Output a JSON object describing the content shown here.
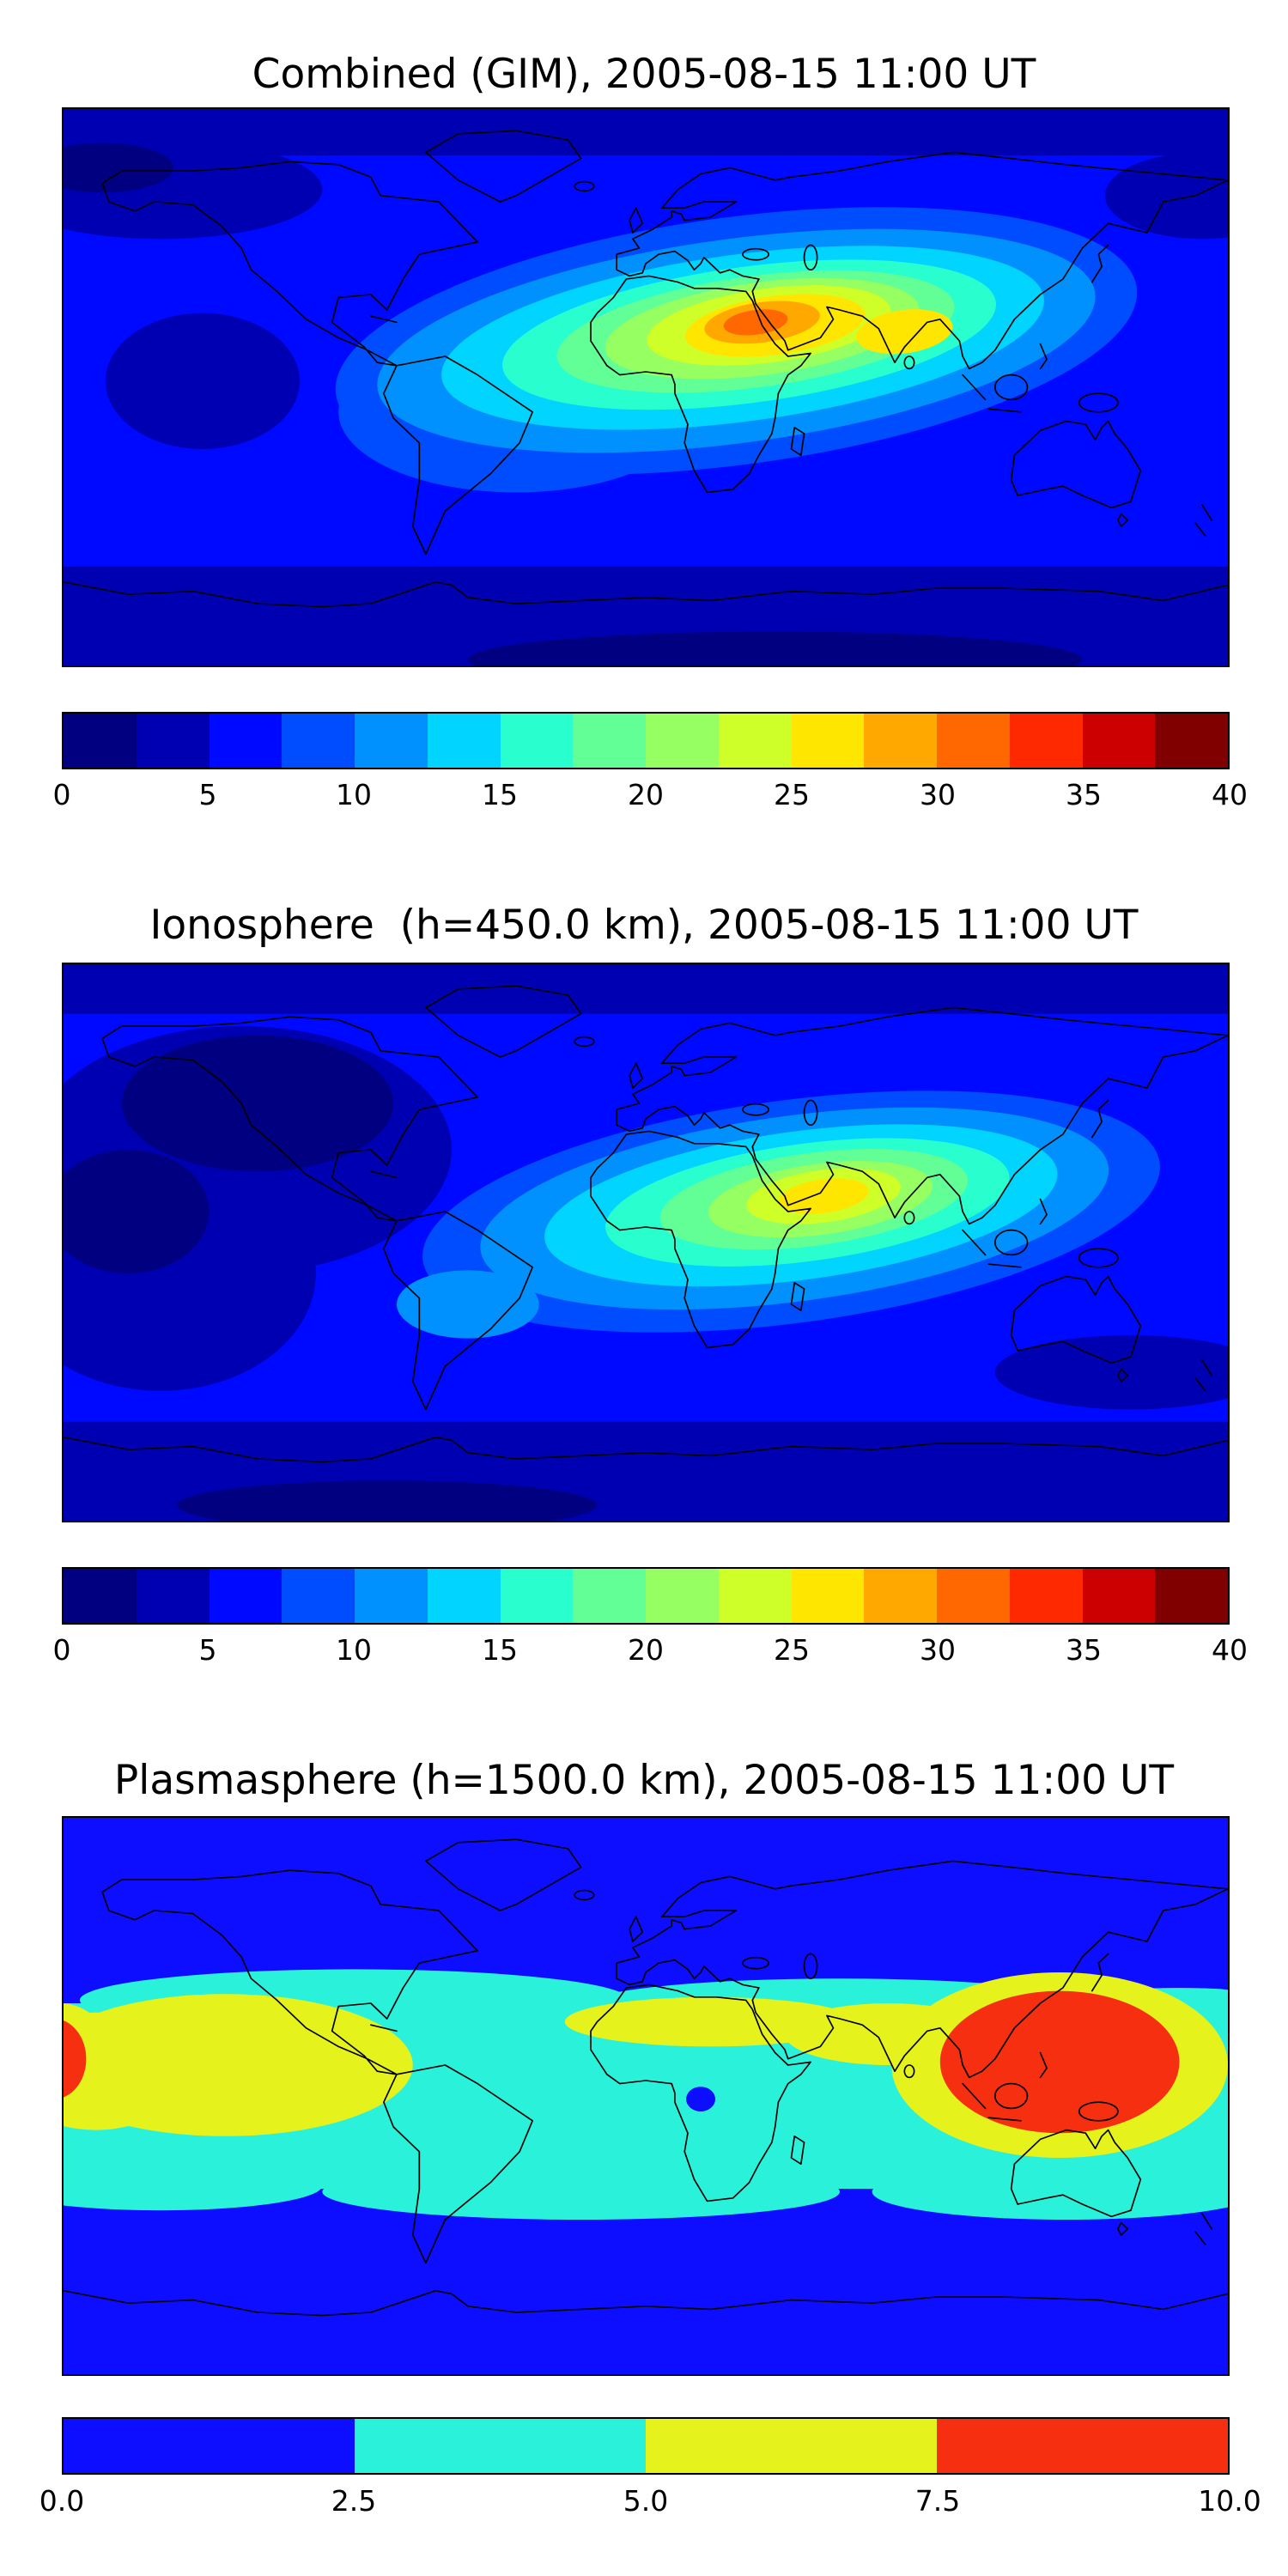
{
  "page": {
    "background": "#ffffff"
  },
  "panels": [
    {
      "id": "combined",
      "title": "Combined (GIM), 2005-08-15 11:00 UT",
      "colorbar": {
        "colors": [
          "#000080",
          "#0000b3",
          "#0009ff",
          "#004dff",
          "#0091ff",
          "#00d4ff",
          "#29ffce",
          "#61ff96",
          "#96ff61",
          "#ceff29",
          "#ffe600",
          "#ffa800",
          "#ff6800",
          "#ff2900",
          "#cc0000",
          "#800000"
        ],
        "tick_labels": [
          "0",
          "5",
          "10",
          "15",
          "20",
          "25",
          "30",
          "35",
          "40"
        ]
      },
      "map": {
        "base_color": "#0009ff",
        "coast_color": "#000000",
        "layers": [
          {
            "shape": "rect",
            "color": "#0009ff"
          },
          {
            "shape": "rect",
            "color": "#0000b3",
            "lat0": 75,
            "lat1": 90
          },
          {
            "shape": "ellipse",
            "color": "#0000b3",
            "lon": -150,
            "lat": 64,
            "rx": 50,
            "ry": 16
          },
          {
            "shape": "ellipse",
            "color": "#0000b3",
            "lon": 172,
            "lat": 62,
            "rx": 30,
            "ry": 14
          },
          {
            "shape": "ellipse",
            "color": "#0000b3",
            "lon": -137,
            "lat": 2,
            "rx": 30,
            "ry": 22
          },
          {
            "shape": "rect",
            "color": "#0000b3",
            "lat0": -90,
            "lat1": -58
          },
          {
            "shape": "ellipse",
            "color": "#000080",
            "lon": 40,
            "lat": -88,
            "rx": 95,
            "ry": 9
          },
          {
            "shape": "ellipse",
            "color": "#000080",
            "lon": -168,
            "lat": 71,
            "rx": 22,
            "ry": 8
          },
          {
            "shape": "ellipse",
            "color": "#004dff",
            "lon": -40,
            "lat": -8,
            "rx": 55,
            "ry": 26
          },
          {
            "shape": "ellipse",
            "color": "#004dff",
            "lon": 28,
            "lat": 15,
            "rx": 125,
            "ry": 40,
            "rot": -8
          },
          {
            "shape": "ellipse",
            "color": "#0091ff",
            "lon": 28,
            "lat": 15,
            "rx": 112,
            "ry": 33,
            "rot": -8
          },
          {
            "shape": "ellipse",
            "color": "#00d4ff",
            "lon": 30,
            "lat": 16,
            "rx": 94,
            "ry": 27,
            "rot": -8
          },
          {
            "shape": "ellipse",
            "color": "#29ffce",
            "lon": 32,
            "lat": 17,
            "rx": 77,
            "ry": 22,
            "rot": -8
          },
          {
            "shape": "ellipse",
            "color": "#61ff96",
            "lon": 34,
            "lat": 18,
            "rx": 62,
            "ry": 18,
            "rot": -8
          },
          {
            "shape": "ellipse",
            "color": "#96ff61",
            "lon": 36,
            "lat": 19,
            "rx": 49,
            "ry": 15,
            "rot": -8
          },
          {
            "shape": "ellipse",
            "color": "#ceff29",
            "lon": 38,
            "lat": 20,
            "rx": 38,
            "ry": 12,
            "rot": -8
          },
          {
            "shape": "ellipse",
            "color": "#ffe600",
            "lon": 40,
            "lat": 20,
            "rx": 28,
            "ry": 9.5,
            "rot": -8
          },
          {
            "shape": "ellipse",
            "color": "#ffe600",
            "lon": 80,
            "lat": 18,
            "rx": 15,
            "ry": 7,
            "rot": -8
          },
          {
            "shape": "ellipse",
            "color": "#ffa800",
            "lon": 36,
            "lat": 21,
            "rx": 18,
            "ry": 6.5,
            "rot": -8
          },
          {
            "shape": "ellipse",
            "color": "#ff6800",
            "lon": 34,
            "lat": 21,
            "rx": 10,
            "ry": 4,
            "rot": -8
          }
        ]
      }
    },
    {
      "id": "ionosphere",
      "title": "Ionosphere  (h=450.0 km), 2005-08-15 11:00 UT",
      "colorbar": {
        "colors": [
          "#000080",
          "#0000b3",
          "#0009ff",
          "#004dff",
          "#0091ff",
          "#00d4ff",
          "#29ffce",
          "#61ff96",
          "#96ff61",
          "#ceff29",
          "#ffe600",
          "#ffa800",
          "#ff6800",
          "#ff2900",
          "#cc0000",
          "#800000"
        ],
        "tick_labels": [
          "0",
          "5",
          "10",
          "15",
          "20",
          "25",
          "30",
          "35",
          "40"
        ]
      },
      "map": {
        "base_color": "#0009ff",
        "coast_color": "#000000",
        "layers": [
          {
            "shape": "rect",
            "color": "#0009ff"
          },
          {
            "shape": "rect",
            "color": "#0000b3",
            "lat0": 74,
            "lat1": 90
          },
          {
            "shape": "ellipse",
            "color": "#0000b3",
            "lon": -125,
            "lat": 30,
            "rx": 65,
            "ry": 40
          },
          {
            "shape": "ellipse",
            "color": "#0000b3",
            "lon": -150,
            "lat": -10,
            "rx": 48,
            "ry": 38
          },
          {
            "shape": "ellipse",
            "color": "#000080",
            "lon": -120,
            "lat": 45,
            "rx": 42,
            "ry": 22
          },
          {
            "shape": "ellipse",
            "color": "#000080",
            "lon": -160,
            "lat": 10,
            "rx": 25,
            "ry": 20
          },
          {
            "shape": "rect",
            "color": "#0000b3",
            "lat0": -90,
            "lat1": -58
          },
          {
            "shape": "ellipse",
            "color": "#000080",
            "lon": -80,
            "lat": -85,
            "rx": 65,
            "ry": 8
          },
          {
            "shape": "ellipse",
            "color": "#0000b3",
            "lon": 150,
            "lat": -42,
            "rx": 42,
            "ry": 12
          },
          {
            "shape": "ellipse",
            "color": "#004dff",
            "lon": 45,
            "lat": 10,
            "rx": 115,
            "ry": 36,
            "rot": -8
          },
          {
            "shape": "ellipse",
            "color": "#0091ff",
            "lon": 46,
            "lat": 11,
            "rx": 98,
            "ry": 30,
            "rot": -8
          },
          {
            "shape": "ellipse",
            "color": "#00d4ff",
            "lon": 48,
            "lat": 12,
            "rx": 80,
            "ry": 24,
            "rot": -8
          },
          {
            "shape": "ellipse",
            "color": "#29ffce",
            "lon": 50,
            "lat": 13,
            "rx": 63,
            "ry": 19,
            "rot": -8
          },
          {
            "shape": "ellipse",
            "color": "#61ff96",
            "lon": 52,
            "lat": 14,
            "rx": 48,
            "ry": 15,
            "rot": -8
          },
          {
            "shape": "ellipse",
            "color": "#96ff61",
            "lon": 54,
            "lat": 14,
            "rx": 35,
            "ry": 11.5,
            "rot": -8
          },
          {
            "shape": "ellipse",
            "color": "#ceff29",
            "lon": 55,
            "lat": 15,
            "rx": 24,
            "ry": 8.5,
            "rot": -8
          },
          {
            "shape": "ellipse",
            "color": "#ffe600",
            "lon": 55,
            "lat": 15,
            "rx": 14,
            "ry": 5.5,
            "rot": -8
          },
          {
            "shape": "ellipse",
            "color": "#0091ff",
            "lon": -55,
            "lat": -20,
            "rx": 22,
            "ry": 11
          }
        ]
      }
    },
    {
      "id": "plasmasphere",
      "title": "Plasmasphere (h=1500.0 km), 2005-08-15 11:00 UT",
      "colorbar": {
        "colors": [
          "#0d0dff",
          "#2af2da",
          "#e6f21c",
          "#f52f10"
        ],
        "tick_labels": [
          "0.0",
          "2.5",
          "5.0",
          "7.5",
          "10.0"
        ]
      },
      "map": {
        "base_color": "#0d0dff",
        "coast_color": "#000000",
        "layers": [
          {
            "shape": "rect",
            "color": "#0d0dff"
          },
          {
            "shape": "rect",
            "color": "#2af2da",
            "lat0": -30,
            "lat1": 30
          },
          {
            "shape": "ellipse",
            "color": "#2af2da",
            "lon": -90,
            "lat": 31,
            "rx": 85,
            "ry": 10
          },
          {
            "shape": "ellipse",
            "color": "#2af2da",
            "lon": 60,
            "lat": 29,
            "rx": 80,
            "ry": 9
          },
          {
            "shape": "ellipse",
            "color": "#2af2da",
            "lon": 165,
            "lat": 27,
            "rx": 40,
            "ry": 8
          },
          {
            "shape": "ellipse",
            "color": "#2af2da",
            "lon": -20,
            "lat": -31,
            "rx": 80,
            "ry": 9
          },
          {
            "shape": "ellipse",
            "color": "#2af2da",
            "lon": -150,
            "lat": -29,
            "rx": 50,
            "ry": 8
          },
          {
            "shape": "ellipse",
            "color": "#2af2da",
            "lon": 130,
            "lat": -31,
            "rx": 60,
            "ry": 9
          },
          {
            "shape": "ellipse",
            "color": "#e6f21c",
            "lon": -130,
            "lat": 10,
            "rx": 58,
            "ry": 23
          },
          {
            "shape": "ellipse",
            "color": "#e6f21c",
            "lon": -170,
            "lat": 8,
            "rx": 28,
            "ry": 19
          },
          {
            "shape": "ellipse",
            "color": "#e6f21c",
            "lon": 20,
            "lat": 24,
            "rx": 45,
            "ry": 8
          },
          {
            "shape": "ellipse",
            "color": "#e6f21c",
            "lon": 75,
            "lat": 20,
            "rx": 32,
            "ry": 10
          },
          {
            "shape": "ellipse",
            "color": "#e6f21c",
            "lon": 128,
            "lat": 10,
            "rx": 52,
            "ry": 30
          },
          {
            "shape": "ellipse",
            "color": "#e6f21c",
            "lon": -181,
            "lat": 12,
            "rx": 16,
            "ry": 18
          },
          {
            "shape": "ellipse",
            "color": "#f52f10",
            "lon": 128,
            "lat": 11,
            "rx": 37,
            "ry": 23
          },
          {
            "shape": "ellipse",
            "color": "#f52f10",
            "lon": -183,
            "lat": 12,
            "rx": 10,
            "ry": 13
          },
          {
            "shape": "ellipse",
            "color": "#0d0dff",
            "lon": 17,
            "lat": -1,
            "rx": 4.5,
            "ry": 4
          }
        ]
      }
    }
  ],
  "chart_data": [
    {
      "type": "heatmap",
      "subtype": "filled-contour-world-map",
      "title": "Combined (GIM), 2005-08-15 11:00 UT",
      "x": "longitude deg (-180 to 180)",
      "y": "latitude deg (-90 to 90)",
      "colormap": "jet",
      "levels": [
        0,
        2.5,
        5,
        7.5,
        10,
        12.5,
        15,
        17.5,
        20,
        22.5,
        25,
        27.5,
        30,
        32.5,
        35,
        37.5,
        40
      ],
      "colorbar_ticks": [
        0,
        5,
        10,
        15,
        20,
        25,
        30,
        35,
        40
      ],
      "peak": {
        "value_approx": 32.5,
        "lon_approx": 34,
        "lat_approx": 21
      },
      "background_value_approx": 7.5,
      "low_regions": [
        {
          "lon": -150,
          "lat": 64,
          "value_approx": 4
        },
        {
          "lon": -137,
          "lat": 2,
          "value_approx": 5
        },
        {
          "where": "latitudes below -58",
          "value_approx": 3
        }
      ],
      "notes": "Broad daytime enhancement elongated WSW-ENE over North Africa, Middle East and India; values fall toward the poles and night-side Pacific."
    },
    {
      "type": "heatmap",
      "subtype": "filled-contour-world-map",
      "title": "Ionosphere  (h=450.0 km), 2005-08-15 11:00 UT",
      "x": "longitude deg (-180 to 180)",
      "y": "latitude deg (-90 to 90)",
      "colormap": "jet",
      "levels": [
        0,
        2.5,
        5,
        7.5,
        10,
        12.5,
        15,
        17.5,
        20,
        22.5,
        25,
        27.5,
        30,
        32.5,
        35,
        37.5,
        40
      ],
      "colorbar_ticks": [
        0,
        5,
        10,
        15,
        20,
        25,
        30,
        35,
        40
      ],
      "peak": {
        "value_approx": 27.5,
        "lon_approx": 55,
        "lat_approx": 15
      },
      "background_value_approx": 7.5,
      "low_regions": [
        {
          "where": "North America / eastern Pacific",
          "value_approx": 2.5
        },
        {
          "where": "latitudes below -58",
          "value_approx": 3
        }
      ],
      "notes": "Same pattern as combined map but weaker peak (yellow core) shifted slightly east; very dark minimum over the night-side American sector."
    },
    {
      "type": "heatmap",
      "subtype": "filled-contour-world-map",
      "title": "Plasmasphere (h=1500.0 km), 2005-08-15 11:00 UT",
      "x": "longitude deg (-180 to 180)",
      "y": "latitude deg (-90 to 90)",
      "colormap": "jet (4 discrete levels)",
      "levels": [
        0,
        2.5,
        5,
        7.5,
        10
      ],
      "colorbar_ticks": [
        0.0,
        2.5,
        5.0,
        7.5,
        10.0
      ],
      "bands": [
        {
          "range": "0-2.5",
          "where": "high latitudes, |lat| greater than about 35"
        },
        {
          "range": "2.5-5",
          "where": "low/mid-latitude band around the equator"
        },
        {
          "range": "5-7.5",
          "where": "Pacific/Americas sector blob and band near lat 20-30 across Africa/Arabia"
        },
        {
          "range": "7.5-10",
          "where": "large oval over Southeast Asia / western Pacific (lon ~90-165), small patch at left map edge"
        }
      ]
    }
  ]
}
